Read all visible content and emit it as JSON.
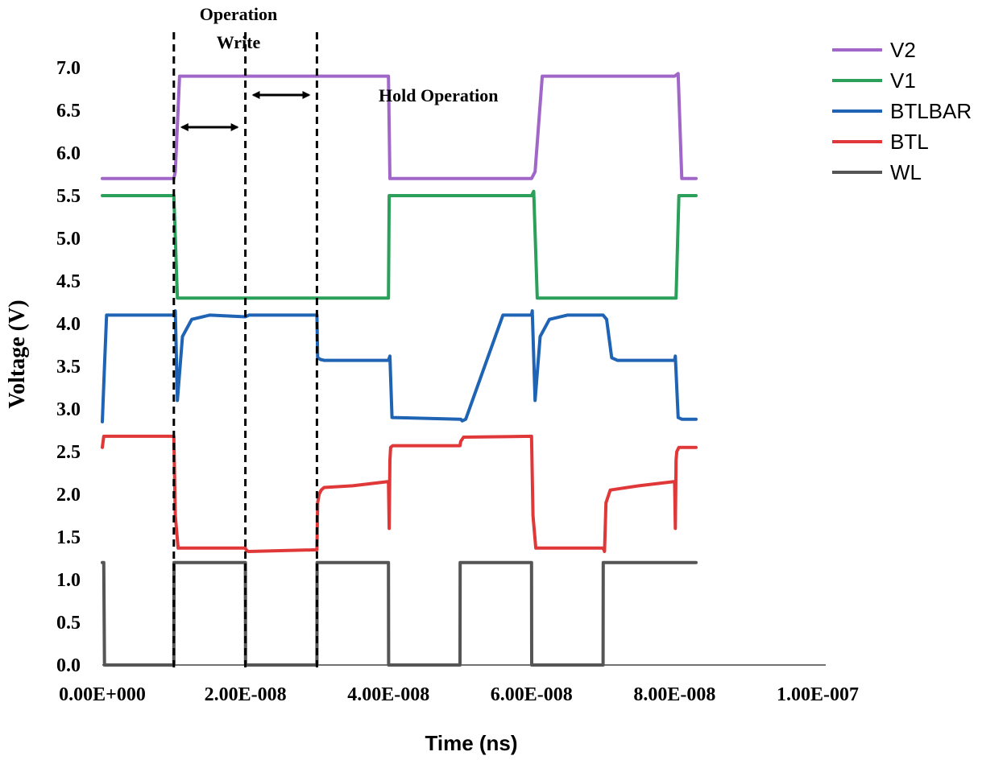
{
  "chart_data": {
    "type": "line",
    "title": "",
    "xlabel": "Time (ns)",
    "ylabel": "Voltage (V)",
    "xlim": [
      0,
      1e-07
    ],
    "ylim": [
      0,
      7.0
    ],
    "x_tick_values": [
      0,
      2e-08,
      4e-08,
      6e-08,
      8e-08,
      1e-07
    ],
    "x_tick_labels": [
      "0.00E+000",
      "2.00E-008",
      "4.00E-008",
      "6.00E-008",
      "8.00E-008",
      "1.00E-007"
    ],
    "y_tick_values": [
      0.0,
      0.5,
      1.0,
      1.5,
      2.0,
      2.5,
      3.0,
      3.5,
      4.0,
      4.5,
      5.0,
      5.5,
      6.0,
      6.5,
      7.0
    ],
    "y_tick_labels": [
      "0.0",
      "0.5",
      "1.0",
      "1.5",
      "2.0",
      "2.5",
      "3.0",
      "3.5",
      "4.0",
      "4.5",
      "5.0",
      "5.5",
      "6.0",
      "6.5",
      "7.0"
    ],
    "grid": false,
    "legend_position": "top-right",
    "series": [
      {
        "name": "V2",
        "color": "#a066c8",
        "x": [
          0,
          2e-10,
          1e-08,
          1.02e-08,
          1.08e-08,
          1.13e-08,
          2e-08,
          3e-08,
          3.05e-08,
          4e-08,
          4.02e-08,
          5e-08,
          6e-08,
          6.05e-08,
          6.15e-08,
          7e-08,
          8e-08,
          8.05e-08,
          8.1e-08,
          8.3e-08
        ],
        "values": [
          5.7,
          5.7,
          5.7,
          5.78,
          6.9,
          6.9,
          6.9,
          6.9,
          6.9,
          6.9,
          5.7,
          5.7,
          5.7,
          5.78,
          6.9,
          6.9,
          6.9,
          6.93,
          5.7,
          5.7
        ]
      },
      {
        "name": "V1",
        "color": "#2aa05a",
        "x": [
          0,
          2e-10,
          1e-08,
          1.05e-08,
          2e-08,
          3e-08,
          3.05e-08,
          4e-08,
          4.01e-08,
          5e-08,
          6e-08,
          6.03e-08,
          6.08e-08,
          7e-08,
          8e-08,
          8.02e-08,
          8.06e-08,
          8.3e-08
        ],
        "values": [
          5.5,
          5.5,
          5.5,
          4.3,
          4.3,
          4.3,
          4.3,
          4.3,
          5.5,
          5.5,
          5.5,
          5.55,
          4.3,
          4.3,
          4.3,
          4.3,
          5.5,
          5.5
        ]
      },
      {
        "name": "BTLBAR",
        "color": "#1f63b4",
        "x": [
          0,
          3e-10,
          6e-10,
          1e-08,
          1.02e-08,
          1.05e-08,
          1.12e-08,
          1.25e-08,
          1.5e-08,
          2e-08,
          2.05e-08,
          2.12e-08,
          2.2e-08,
          3e-08,
          3.01e-08,
          3.05e-08,
          3.1e-08,
          3.15e-08,
          4e-08,
          4.02e-08,
          4.05e-08,
          5e-08,
          5.01e-08,
          5.03e-08,
          5.08e-08,
          5.6e-08,
          6e-08,
          6.01e-08,
          6.05e-08,
          6.12e-08,
          6.25e-08,
          6.5e-08,
          7e-08,
          7.05e-08,
          7.12e-08,
          7.2e-08,
          8e-08,
          8.01e-08,
          8.05e-08,
          8.1e-08,
          8.3e-08
        ],
        "values": [
          2.85,
          3.5,
          4.1,
          4.1,
          4.15,
          3.1,
          3.85,
          4.05,
          4.1,
          4.08,
          4.1,
          4.1,
          4.1,
          4.1,
          3.6,
          3.58,
          3.57,
          3.57,
          3.57,
          3.62,
          2.9,
          2.88,
          2.88,
          2.86,
          2.88,
          4.1,
          4.1,
          4.15,
          3.1,
          3.85,
          4.05,
          4.1,
          4.1,
          4.05,
          3.6,
          3.57,
          3.57,
          3.62,
          2.9,
          2.88,
          2.88
        ]
      },
      {
        "name": "BTL",
        "color": "#e03838",
        "x": [
          0,
          2e-10,
          1e-08,
          1.02e-08,
          1.06e-08,
          2e-08,
          2.01e-08,
          2.04e-08,
          3e-08,
          3.01e-08,
          3.03e-08,
          3.06e-08,
          3.1e-08,
          3.5e-08,
          4e-08,
          4.01e-08,
          4.02e-08,
          4.03e-08,
          4.06e-08,
          5e-08,
          5.01e-08,
          5.05e-08,
          6e-08,
          6.02e-08,
          6.06e-08,
          7e-08,
          7.02e-08,
          7.04e-08,
          7.1e-08,
          7.5e-08,
          8e-08,
          8.01e-08,
          8.02e-08,
          8.03e-08,
          8.06e-08,
          8.3e-08
        ],
        "values": [
          2.55,
          2.68,
          2.68,
          1.75,
          1.37,
          1.37,
          1.35,
          1.33,
          1.35,
          1.9,
          2.0,
          2.05,
          2.08,
          2.1,
          2.15,
          1.6,
          2.4,
          2.55,
          2.57,
          2.57,
          2.62,
          2.67,
          2.68,
          1.75,
          1.37,
          1.37,
          1.33,
          1.9,
          2.05,
          2.1,
          2.15,
          1.6,
          2.4,
          2.5,
          2.55,
          2.55
        ]
      },
      {
        "name": "WL",
        "color": "#555555",
        "x": [
          0,
          2e-10,
          3e-10,
          1e-08,
          1.002e-08,
          1.005e-08,
          2e-08,
          2.002e-08,
          3e-08,
          3.002e-08,
          4e-08,
          4.002e-08,
          5e-08,
          5.002e-08,
          6e-08,
          6.002e-08,
          7e-08,
          7.002e-08,
          8e-08,
          8.002e-08,
          8.3e-08
        ],
        "values": [
          1.2,
          1.2,
          0,
          0,
          1.2,
          1.2,
          1.2,
          0,
          0,
          1.2,
          1.2,
          0,
          0,
          1.2,
          1.2,
          0,
          0,
          1.2,
          1.2,
          1.2,
          1.2
        ]
      }
    ],
    "annotations": [
      {
        "text": "Operation",
        "kind": "label"
      },
      {
        "text": "Write",
        "kind": "label"
      },
      {
        "text": "Hold Operation",
        "kind": "label"
      }
    ],
    "reference_lines_x": [
      1e-08,
      2e-08,
      3e-08
    ]
  }
}
